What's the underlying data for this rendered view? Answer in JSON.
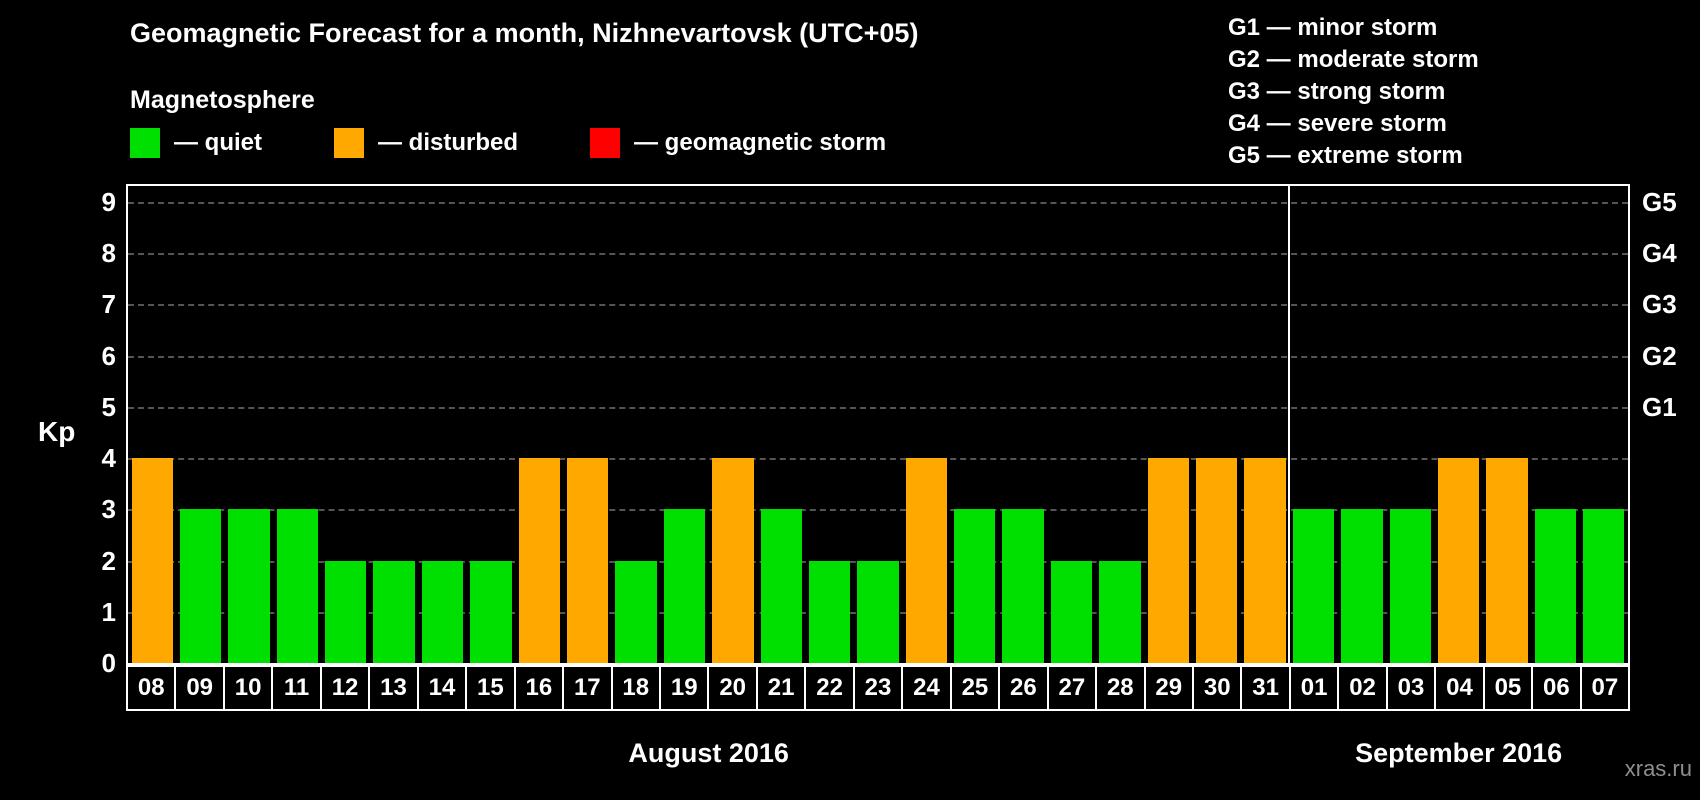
{
  "watermark": "xras.ru",
  "chart_data": {
    "type": "bar",
    "title": "Geomagnetic Forecast for a month, Nizhnevartovsk (UTC+05)",
    "legend_heading": "Magnetosphere",
    "legend": [
      {
        "status": "quiet",
        "label": "— quiet",
        "color": "#00e000"
      },
      {
        "status": "disturbed",
        "label": "— disturbed",
        "color": "#ffa800"
      },
      {
        "status": "storm",
        "label": "— geomagnetic storm",
        "color": "#ff0000"
      }
    ],
    "g_scale_legend": [
      "G1 — minor storm",
      "G2 — moderate storm",
      "G3 — strong storm",
      "G4 — severe storm",
      "G5 — extreme storm"
    ],
    "ylabel": "Kp",
    "ylim": [
      0,
      9
    ],
    "yticks": [
      0,
      1,
      2,
      3,
      4,
      5,
      6,
      7,
      8,
      9
    ],
    "right_axis_labels": [
      {
        "text": "G1",
        "value": 5
      },
      {
        "text": "G2",
        "value": 6
      },
      {
        "text": "G3",
        "value": 7
      },
      {
        "text": "G4",
        "value": 8
      },
      {
        "text": "G5",
        "value": 9
      }
    ],
    "grid": "horizontal-dashed",
    "months": [
      {
        "label": "August 2016",
        "start_index": 0,
        "count": 24
      },
      {
        "label": "September 2016",
        "start_index": 24,
        "count": 7
      }
    ],
    "categories": [
      "08",
      "09",
      "10",
      "11",
      "12",
      "13",
      "14",
      "15",
      "16",
      "17",
      "18",
      "19",
      "20",
      "21",
      "22",
      "23",
      "24",
      "25",
      "26",
      "27",
      "28",
      "29",
      "30",
      "31",
      "01",
      "02",
      "03",
      "04",
      "05",
      "06",
      "07"
    ],
    "values": [
      4,
      3,
      3,
      3,
      2,
      2,
      2,
      2,
      4,
      4,
      2,
      3,
      4,
      3,
      2,
      2,
      4,
      3,
      3,
      2,
      2,
      4,
      4,
      4,
      3,
      3,
      3,
      4,
      4,
      3,
      3
    ],
    "status_rule": {
      "quiet_max": 3,
      "disturbed_max": 4,
      "storm_min": 5
    },
    "colors": {
      "quiet": "#00e000",
      "disturbed": "#ffa800",
      "storm": "#ff0000"
    }
  }
}
